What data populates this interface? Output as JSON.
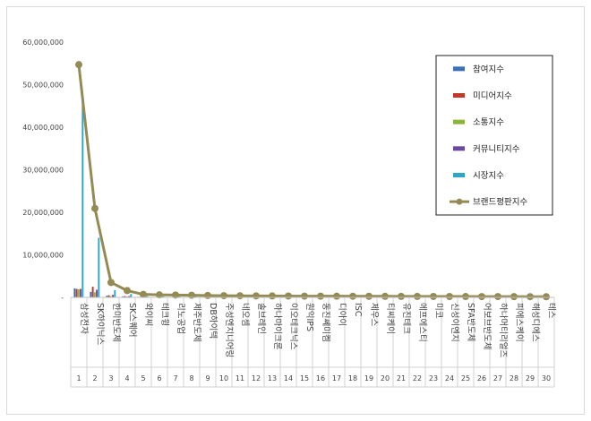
{
  "chart_data": {
    "type": "bar",
    "title": "",
    "xlabel": "",
    "ylabel": "",
    "ylim": [
      0,
      60000000
    ],
    "yticks": [
      {
        "value": 0,
        "label": "-"
      },
      {
        "value": 10000000,
        "label": "10,000,000"
      },
      {
        "value": 20000000,
        "label": "20,000,000"
      },
      {
        "value": 30000000,
        "label": "30,000,000"
      },
      {
        "value": 40000000,
        "label": "40,000,000"
      },
      {
        "value": 50000000,
        "label": "50,000,000"
      },
      {
        "value": 60000000,
        "label": "60,000,000"
      }
    ],
    "grid": false,
    "legend_position": "right",
    "categories": [
      "삼성전자",
      "SK하이닉스",
      "한미반도체",
      "SK스퀘어",
      "와이씨",
      "테크윙",
      "리노공업",
      "제주반도체",
      "DB하이텍",
      "주성엔지니어링",
      "네오셈",
      "솔브레인",
      "하나마이크론",
      "이오테크닉스",
      "원익IPS",
      "동진쎄미켐",
      "디아이",
      "ISC",
      "제우스",
      "티씨케이",
      "유진테크",
      "에프에스티",
      "미코",
      "신성이엔지",
      "SFA반도체",
      "어보브반도체",
      "하나머티리얼즈",
      "피에스케이",
      "해성디에스",
      "테스"
    ],
    "indices": [
      "1",
      "2",
      "3",
      "4",
      "5",
      "6",
      "7",
      "8",
      "9",
      "10",
      "11",
      "12",
      "13",
      "14",
      "15",
      "16",
      "17",
      "18",
      "19",
      "20",
      "21",
      "22",
      "23",
      "24",
      "25",
      "26",
      "27",
      "28",
      "29",
      "30"
    ],
    "series": [
      {
        "name": "참여지수",
        "type": "bar",
        "color": "#3b6fb6",
        "values": [
          2100000,
          1300000,
          400000,
          250000,
          120000,
          100000,
          90000,
          80000,
          80000,
          70000,
          60000,
          60000,
          55000,
          55000,
          50000,
          50000,
          45000,
          45000,
          40000,
          40000,
          40000,
          35000,
          35000,
          30000,
          30000,
          30000,
          25000,
          25000,
          25000,
          20000
        ]
      },
      {
        "name": "미디어지수",
        "type": "bar",
        "color": "#c0392b",
        "values": [
          2000000,
          2500000,
          500000,
          300000,
          150000,
          120000,
          100000,
          100000,
          90000,
          80000,
          70000,
          70000,
          60000,
          60000,
          60000,
          55000,
          50000,
          50000,
          45000,
          45000,
          40000,
          40000,
          35000,
          35000,
          30000,
          30000,
          30000,
          25000,
          25000,
          20000
        ]
      },
      {
        "name": "소통지수",
        "type": "bar",
        "color": "#8cb43c",
        "values": [
          1900000,
          1200000,
          300000,
          200000,
          100000,
          90000,
          80000,
          70000,
          70000,
          60000,
          50000,
          50000,
          45000,
          45000,
          40000,
          40000,
          35000,
          35000,
          30000,
          30000,
          30000,
          25000,
          25000,
          25000,
          20000,
          20000,
          20000,
          20000,
          15000,
          15000
        ]
      },
      {
        "name": "커뮤니티지수",
        "type": "bar",
        "color": "#6a4aa0",
        "values": [
          2000000,
          1800000,
          600000,
          300000,
          120000,
          110000,
          100000,
          90000,
          80000,
          80000,
          70000,
          60000,
          60000,
          55000,
          50000,
          50000,
          45000,
          45000,
          40000,
          40000,
          35000,
          35000,
          30000,
          30000,
          30000,
          25000,
          25000,
          20000,
          20000,
          20000
        ]
      },
      {
        "name": "시장지수",
        "type": "bar",
        "color": "#31a5c8",
        "values": [
          46000000,
          14000000,
          1700000,
          800000,
          300000,
          250000,
          200000,
          200000,
          180000,
          160000,
          150000,
          140000,
          130000,
          120000,
          110000,
          100000,
          100000,
          90000,
          90000,
          80000,
          80000,
          70000,
          70000,
          60000,
          60000,
          60000,
          50000,
          50000,
          50000,
          40000
        ]
      },
      {
        "name": "브랜드평판지수",
        "type": "line",
        "color": "#948a54",
        "values": [
          54700000,
          20900000,
          3500000,
          1600000,
          700000,
          600000,
          550000,
          500000,
          450000,
          400000,
          380000,
          350000,
          330000,
          320000,
          300000,
          290000,
          280000,
          270000,
          260000,
          250000,
          240000,
          230000,
          220000,
          210000,
          200000,
          195000,
          190000,
          180000,
          170000,
          160000
        ]
      }
    ]
  }
}
